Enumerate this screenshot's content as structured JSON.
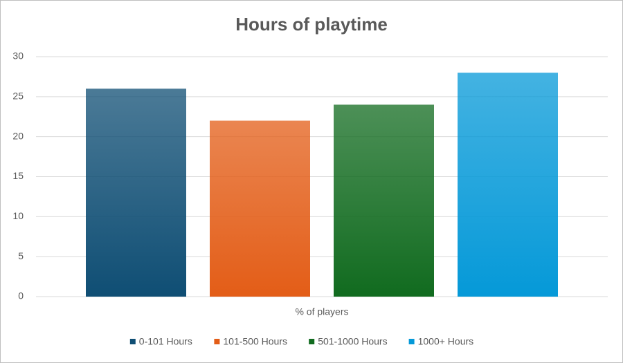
{
  "chart_data": {
    "type": "bar",
    "title": "Hours of playtime",
    "categories": [
      "% of players"
    ],
    "series": [
      {
        "name": "0-101 Hours",
        "color": "#0f4e74",
        "values": [
          26
        ]
      },
      {
        "name": "101-500 Hours",
        "color": "#e35d17",
        "values": [
          22
        ]
      },
      {
        "name": "501-1000 Hours",
        "color": "#116b1f",
        "values": [
          24
        ]
      },
      {
        "name": "1000+ Hours",
        "color": "#0599d8",
        "values": [
          28
        ]
      }
    ],
    "ylim": [
      0,
      30
    ],
    "yticks": [
      0,
      5,
      10,
      15,
      20,
      25,
      30
    ],
    "grid": true,
    "legend": "bottom"
  }
}
